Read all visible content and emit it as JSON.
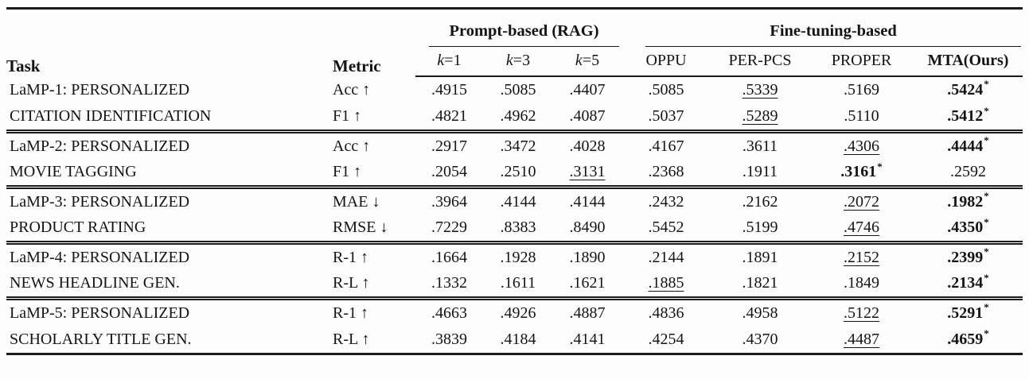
{
  "table": {
    "headers": {
      "task": "Task",
      "metric": "Metric",
      "group_prompt": "Prompt-based (RAG)",
      "group_finetune": "Fine-tuning-based"
    },
    "subheaders": [
      {
        "id": "k1",
        "label": "k=1",
        "math_k": true
      },
      {
        "id": "k3",
        "label": "k=3",
        "math_k": true
      },
      {
        "id": "k5",
        "label": "k=5",
        "math_k": true
      },
      {
        "id": "oppu",
        "label": "OPPU"
      },
      {
        "id": "per-pcs",
        "label": "PER-PCS"
      },
      {
        "id": "proper",
        "label": "PROPER"
      },
      {
        "id": "mta-ours",
        "label": "MTA(Ours)",
        "bold": true
      }
    ],
    "star_char": "*",
    "blocks": [
      {
        "task_line1": "LaMP-1: PERSONALIZED",
        "task_line2": "CITATION IDENTIFICATION",
        "rows": [
          {
            "metric": "Acc ↑",
            "values": [
              ".4915",
              ".5085",
              ".4407",
              ".5085",
              ".5339",
              ".5169",
              ".5424"
            ],
            "underline": 4,
            "bold_star": 6
          },
          {
            "metric": "F1 ↑",
            "values": [
              ".4821",
              ".4962",
              ".4087",
              ".5037",
              ".5289",
              ".5110",
              ".5412"
            ],
            "underline": 4,
            "bold_star": 6
          }
        ]
      },
      {
        "task_line1": "LaMP-2: PERSONALIZED",
        "task_line2": "MOVIE TAGGING",
        "rows": [
          {
            "metric": "Acc ↑",
            "values": [
              ".2917",
              ".3472",
              ".4028",
              ".4167",
              ".3611",
              ".4306",
              ".4444"
            ],
            "underline": 5,
            "bold_star": 6
          },
          {
            "metric": "F1 ↑",
            "values": [
              ".2054",
              ".2510",
              ".3131",
              ".2368",
              ".1911",
              ".3161",
              ".2592"
            ],
            "underline": 2,
            "bold_star": 5
          }
        ]
      },
      {
        "task_line1": "LaMP-3: PERSONALIZED",
        "task_line2": "PRODUCT RATING",
        "rows": [
          {
            "metric": "MAE ↓",
            "values": [
              ".3964",
              ".4144",
              ".4144",
              ".2432",
              ".2162",
              ".2072",
              ".1982"
            ],
            "underline": 5,
            "bold_star": 6
          },
          {
            "metric": "RMSE ↓",
            "values": [
              ".7229",
              ".8383",
              ".8490",
              ".5452",
              ".5199",
              ".4746",
              ".4350"
            ],
            "underline": 5,
            "bold_star": 6
          }
        ]
      },
      {
        "task_line1": "LaMP-4: PERSONALIZED",
        "task_line2": "NEWS HEADLINE GEN.",
        "rows": [
          {
            "metric": "R-1 ↑",
            "values": [
              ".1664",
              ".1928",
              ".1890",
              ".2144",
              ".1891",
              ".2152",
              ".2399"
            ],
            "underline": 5,
            "bold_star": 6
          },
          {
            "metric": "R-L ↑",
            "values": [
              ".1332",
              ".1611",
              ".1621",
              ".1885",
              ".1821",
              ".1849",
              ".2134"
            ],
            "underline": 3,
            "bold_star": 6
          }
        ]
      },
      {
        "task_line1": "LaMP-5: PERSONALIZED",
        "task_line2": "SCHOLARLY TITLE GEN.",
        "rows": [
          {
            "metric": "R-1 ↑",
            "values": [
              ".4663",
              ".4926",
              ".4887",
              ".4836",
              ".4958",
              ".5122",
              ".5291"
            ],
            "underline": 5,
            "bold_star": 6
          },
          {
            "metric": "R-L ↑",
            "values": [
              ".3839",
              ".4184",
              ".4141",
              ".4254",
              ".4370",
              ".4487",
              ".4659"
            ],
            "underline": 5,
            "bold_star": 6
          }
        ]
      }
    ]
  },
  "colors": {
    "text": "#141414",
    "rule": "#1a1a1a",
    "background": "#fdfdfd"
  }
}
